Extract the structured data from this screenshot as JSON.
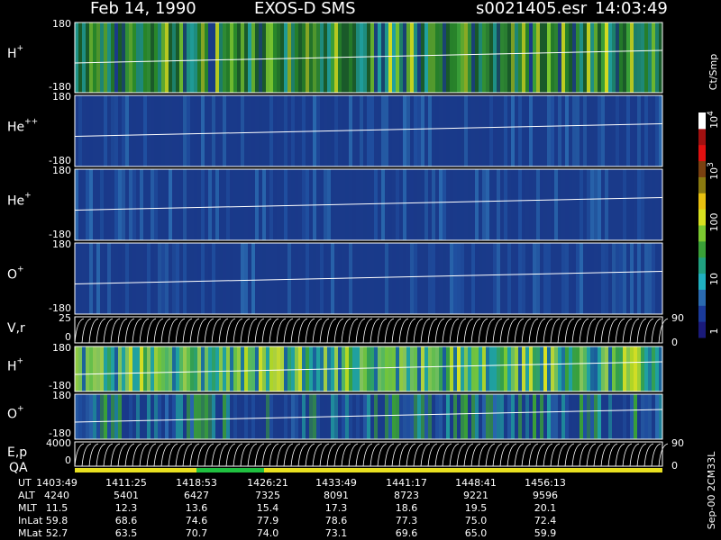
{
  "header": {
    "date": "Feb 14, 1990",
    "instrument": "EXOS-D SMS",
    "file": "s0021405.esr",
    "time": "14:03:49"
  },
  "panels": [
    {
      "ion": "H",
      "charge": "+",
      "top": "180",
      "bottom": "-180"
    },
    {
      "ion": "He",
      "charge": "++",
      "top": "180",
      "bottom": "-180"
    },
    {
      "ion": "He",
      "charge": "+",
      "top": "180",
      "bottom": "-180"
    },
    {
      "ion": "O",
      "charge": "+",
      "top": "180",
      "bottom": "-180"
    },
    {
      "ion": "V,r",
      "top": "25",
      "bottom": "0",
      "right_top": "90",
      "right_bottom": "0"
    },
    {
      "ion": "H",
      "charge": "+",
      "top": "180",
      "bottom": "-180"
    },
    {
      "ion": "O",
      "charge": "+",
      "top": "180",
      "bottom": "-180"
    },
    {
      "ion": "E,p",
      "top": "4000",
      "bottom": "0",
      "right_top": "90",
      "right_bottom": "0"
    }
  ],
  "qa_label": "QA",
  "colorbar": {
    "unit": "Ct/Smp",
    "labels": [
      {
        "base": "10",
        "exp": "4"
      },
      {
        "base": "10",
        "exp": "3"
      },
      {
        "base": "100"
      },
      {
        "base": "10"
      },
      {
        "base": "1"
      }
    ]
  },
  "footer_note": "Sep-00 2CM33L",
  "table": {
    "rows": [
      [
        "UT",
        "1403:49",
        "1411:25",
        "1418:53",
        "1426:21",
        "1433:49",
        "1441:17",
        "1448:41",
        "1456:13"
      ],
      [
        "ALT",
        "4240",
        "5401",
        "6427",
        "7325",
        "8091",
        "8723",
        "9221",
        "9596"
      ],
      [
        "MLT",
        "11.5",
        "12.3",
        "13.6",
        "15.4",
        "17.3",
        "18.6",
        "19.5",
        "20.1"
      ],
      [
        "InLat",
        "59.8",
        "68.6",
        "74.6",
        "77.9",
        "78.6",
        "77.3",
        "75.0",
        "72.4"
      ],
      [
        "MLat",
        "52.7",
        "63.5",
        "70.7",
        "74.0",
        "73.1",
        "69.6",
        "65.0",
        "59.9"
      ]
    ]
  }
}
